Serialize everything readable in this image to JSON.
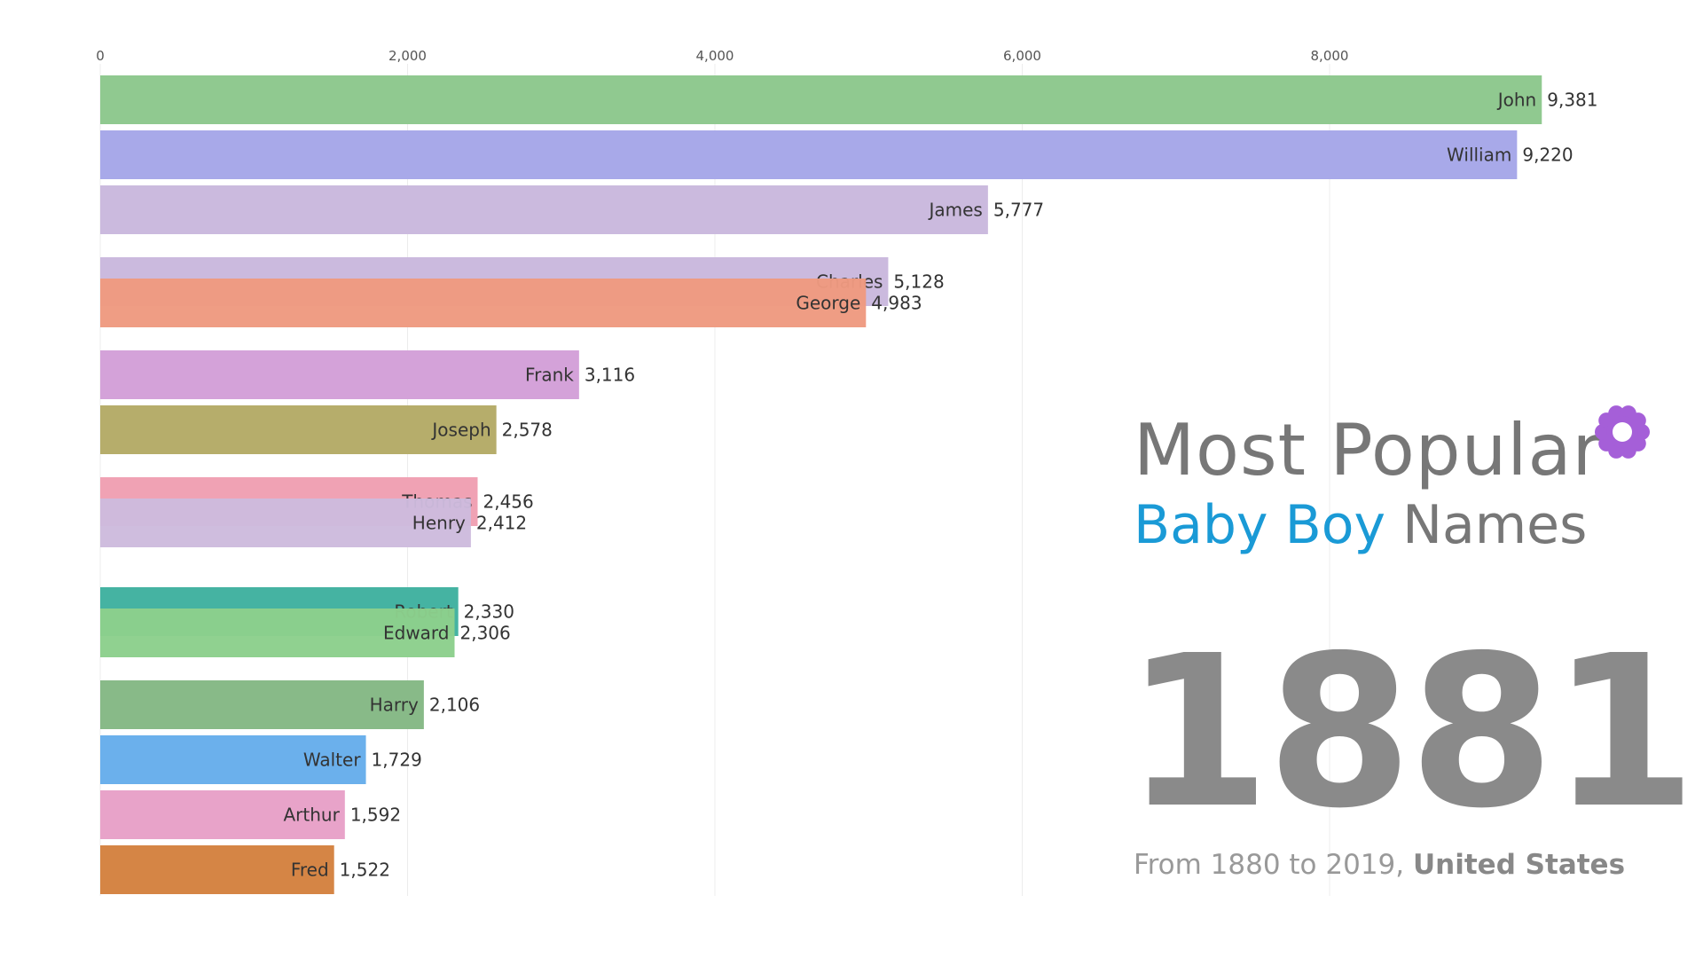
{
  "chart_data": {
    "type": "bar",
    "orientation": "horizontal",
    "xlim": [
      0,
      10000
    ],
    "ticks": [
      0,
      2000,
      4000,
      6000,
      8000
    ],
    "tick_labels": [
      "0",
      "2,000",
      "4,000",
      "6,000",
      "8,000"
    ],
    "grid": true,
    "bars": [
      {
        "name": "John",
        "value": 9381,
        "value_label": "9,381",
        "color": "#8cc78c"
      },
      {
        "name": "William",
        "value": 9220,
        "value_label": "9,220",
        "color": "#a5a6e8"
      },
      {
        "name": "James",
        "value": 5777,
        "value_label": "5,777",
        "color": "#c9b8dd"
      },
      {
        "name": "Charles",
        "value": 5128,
        "value_label": "5,128",
        "color": "#c9b8dd"
      },
      {
        "name": "George",
        "value": 4983,
        "value_label": "4,983",
        "color": "#ee9a80"
      },
      {
        "name": "Frank",
        "value": 3116,
        "value_label": "3,116",
        "color": "#d39fd8"
      },
      {
        "name": "Joseph",
        "value": 2578,
        "value_label": "2,578",
        "color": "#b4aa66"
      },
      {
        "name": "Thomas",
        "value": 2456,
        "value_label": "2,456",
        "color": "#ef9fb2"
      },
      {
        "name": "Henry",
        "value": 2412,
        "value_label": "2,412",
        "color": "#cdbbdd"
      },
      {
        "name": "Robert",
        "value": 2330,
        "value_label": "2,330",
        "color": "#3fb19f"
      },
      {
        "name": "Edward",
        "value": 2306,
        "value_label": "2,306",
        "color": "#8ccf8c"
      },
      {
        "name": "Harry",
        "value": 2106,
        "value_label": "2,106",
        "color": "#84b884"
      },
      {
        "name": "Walter",
        "value": 1729,
        "value_label": "1,729",
        "color": "#66adeb"
      },
      {
        "name": "Arthur",
        "value": 1592,
        "value_label": "1,592",
        "color": "#e7a0c7"
      },
      {
        "name": "Fred",
        "value": 1522,
        "value_label": "1,522",
        "color": "#d4813f"
      }
    ]
  },
  "title": {
    "line1": "Most Popular",
    "accent": "Baby Boy",
    "rest": "Names"
  },
  "year": "1881",
  "subtitle": {
    "prefix": "From 1880 to 2019, ",
    "strong": "United States"
  },
  "colors": {
    "accent": "#1a9ad6",
    "flower": "#a55fd8"
  },
  "icons": {
    "flower": "flower-icon"
  }
}
